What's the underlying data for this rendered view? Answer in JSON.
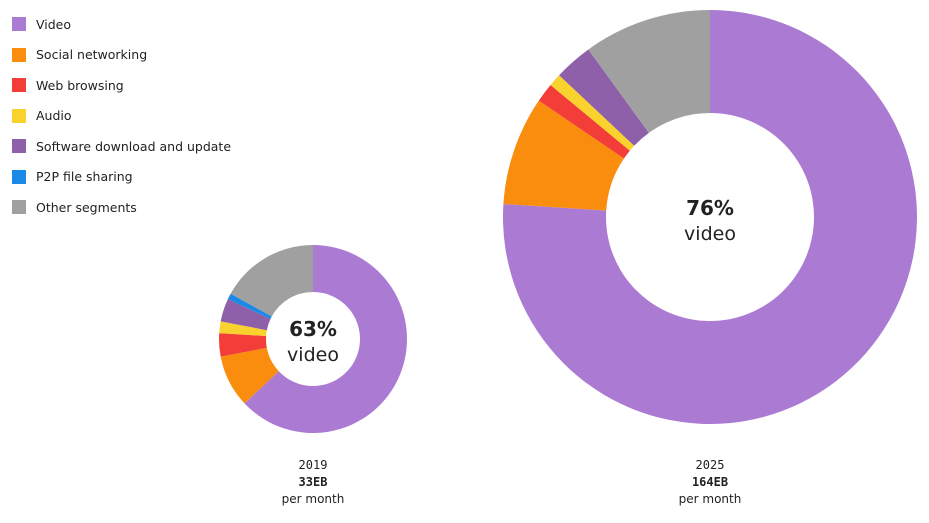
{
  "legend": [
    {
      "label": "Video",
      "color": "#ab7bd4"
    },
    {
      "label": "Social networking",
      "color": "#fa8d0d"
    },
    {
      "label": "Web browsing",
      "color": "#f33d39"
    },
    {
      "label": "Audio",
      "color": "#fad22d"
    },
    {
      "label": "Software download and update",
      "color": "#8f60aa"
    },
    {
      "label": "P2P file sharing",
      "color": "#1a8ae6"
    },
    {
      "label": "Other segments",
      "color": "#a0a0a0"
    }
  ],
  "chart_data": [
    {
      "type": "pie",
      "year": "2019",
      "total": "33EB",
      "unit": "per month",
      "center_value": "63%",
      "center_label": "video",
      "categories": [
        "Video",
        "Social networking",
        "Web browsing",
        "Audio",
        "Software download and update",
        "P2P file sharing",
        "Other segments"
      ],
      "values": [
        63,
        9,
        4,
        2,
        4,
        1,
        17
      ]
    },
    {
      "type": "pie",
      "year": "2025",
      "total": "164EB",
      "unit": "per month",
      "center_value": "76%",
      "center_label": "video",
      "categories": [
        "Video",
        "Social networking",
        "Web browsing",
        "Audio",
        "Software download and update",
        "P2P file sharing",
        "Other segments"
      ],
      "values": [
        76,
        8.5,
        1.5,
        1,
        3,
        0,
        10
      ]
    }
  ]
}
